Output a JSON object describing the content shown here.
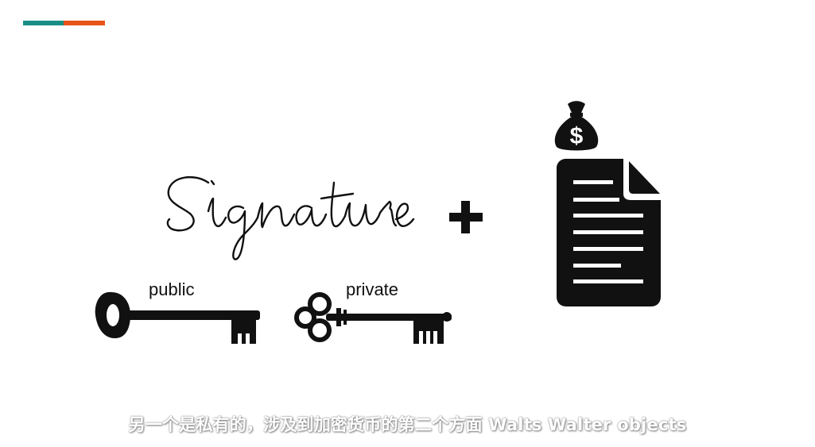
{
  "slide": {
    "accent_colors": [
      "#1a8f86",
      "#e9541b"
    ],
    "signature_text": "Signature",
    "plus_symbol": "+",
    "icons": {
      "money_bag": "money-bag-icon",
      "document": "document-icon",
      "public_key": "public-key-icon",
      "private_key": "private-key-icon"
    },
    "money_bag_symbol": "$",
    "public_key_label": "public",
    "private_key_label": "private"
  },
  "subtitle": "另一个是私有的，涉及到加密货币的第二个方面 Walts Walter objects"
}
